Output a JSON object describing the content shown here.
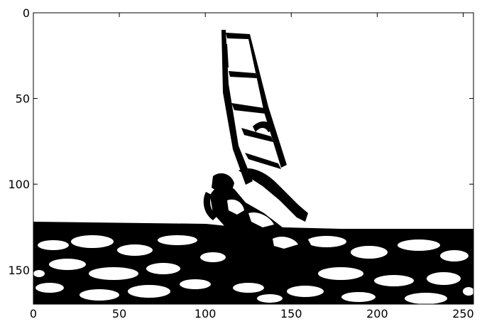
{
  "image": {
    "description_kind": "binary-thresholded photo",
    "colors": {
      "foreground": "#000000",
      "background": "#ffffff"
    },
    "extent": {
      "x": [
        0,
        256
      ],
      "y": [
        0,
        170
      ]
    }
  },
  "axes": {
    "x_ticks": [
      {
        "value": 0,
        "label": "0"
      },
      {
        "value": 50,
        "label": "50"
      },
      {
        "value": 100,
        "label": "100"
      },
      {
        "value": 150,
        "label": "150"
      },
      {
        "value": 200,
        "label": "200"
      },
      {
        "value": 250,
        "label": "250"
      }
    ],
    "y_ticks": [
      {
        "value": 0,
        "label": "0"
      },
      {
        "value": 50,
        "label": "50"
      },
      {
        "value": 100,
        "label": "100"
      },
      {
        "value": 150,
        "label": "150"
      }
    ]
  }
}
